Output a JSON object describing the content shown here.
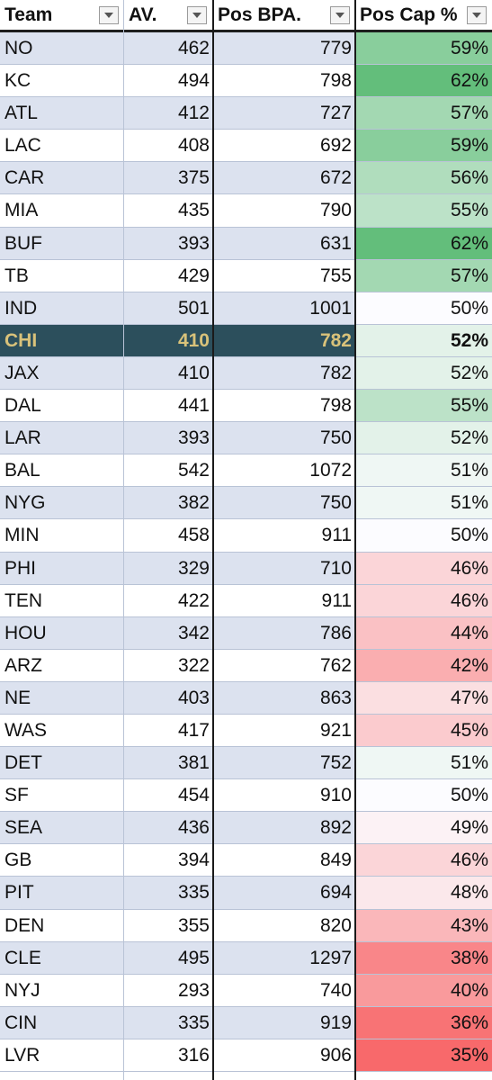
{
  "header": {
    "team": "Team",
    "av": "AV.",
    "bpa": "Pos BPA.",
    "cap": "Pos Cap %"
  },
  "selected_team": "CHI",
  "colors": {
    "band": "#dce2ef",
    "selected": "#2c4f5c",
    "selected_text": "#d9c27a",
    "green": "#63be7b",
    "white": "#fcfcff",
    "red": "#f8696b"
  },
  "rows": [
    {
      "team": "NO",
      "av": "462",
      "bpa": "779",
      "cap": "59%"
    },
    {
      "team": "KC",
      "av": "494",
      "bpa": "798",
      "cap": "62%"
    },
    {
      "team": "ATL",
      "av": "412",
      "bpa": "727",
      "cap": "57%"
    },
    {
      "team": "LAC",
      "av": "408",
      "bpa": "692",
      "cap": "59%"
    },
    {
      "team": "CAR",
      "av": "375",
      "bpa": "672",
      "cap": "56%"
    },
    {
      "team": "MIA",
      "av": "435",
      "bpa": "790",
      "cap": "55%"
    },
    {
      "team": "BUF",
      "av": "393",
      "bpa": "631",
      "cap": "62%"
    },
    {
      "team": "TB",
      "av": "429",
      "bpa": "755",
      "cap": "57%"
    },
    {
      "team": "IND",
      "av": "501",
      "bpa": "1001",
      "cap": "50%"
    },
    {
      "team": "CHI",
      "av": "410",
      "bpa": "782",
      "cap": "52%"
    },
    {
      "team": "JAX",
      "av": "410",
      "bpa": "782",
      "cap": "52%"
    },
    {
      "team": "DAL",
      "av": "441",
      "bpa": "798",
      "cap": "55%"
    },
    {
      "team": "LAR",
      "av": "393",
      "bpa": "750",
      "cap": "52%"
    },
    {
      "team": "BAL",
      "av": "542",
      "bpa": "1072",
      "cap": "51%"
    },
    {
      "team": "NYG",
      "av": "382",
      "bpa": "750",
      "cap": "51%"
    },
    {
      "team": "MIN",
      "av": "458",
      "bpa": "911",
      "cap": "50%"
    },
    {
      "team": "PHI",
      "av": "329",
      "bpa": "710",
      "cap": "46%"
    },
    {
      "team": "TEN",
      "av": "422",
      "bpa": "911",
      "cap": "46%"
    },
    {
      "team": "HOU",
      "av": "342",
      "bpa": "786",
      "cap": "44%"
    },
    {
      "team": "ARZ",
      "av": "322",
      "bpa": "762",
      "cap": "42%"
    },
    {
      "team": "NE",
      "av": "403",
      "bpa": "863",
      "cap": "47%"
    },
    {
      "team": "WAS",
      "av": "417",
      "bpa": "921",
      "cap": "45%"
    },
    {
      "team": "DET",
      "av": "381",
      "bpa": "752",
      "cap": "51%"
    },
    {
      "team": "SF",
      "av": "454",
      "bpa": "910",
      "cap": "50%"
    },
    {
      "team": "SEA",
      "av": "436",
      "bpa": "892",
      "cap": "49%"
    },
    {
      "team": "GB",
      "av": "394",
      "bpa": "849",
      "cap": "46%"
    },
    {
      "team": "PIT",
      "av": "335",
      "bpa": "694",
      "cap": "48%"
    },
    {
      "team": "DEN",
      "av": "355",
      "bpa": "820",
      "cap": "43%"
    },
    {
      "team": "CLE",
      "av": "495",
      "bpa": "1297",
      "cap": "38%"
    },
    {
      "team": "NYJ",
      "av": "293",
      "bpa": "740",
      "cap": "40%"
    },
    {
      "team": "CIN",
      "av": "335",
      "bpa": "919",
      "cap": "36%"
    },
    {
      "team": "LVR",
      "av": "316",
      "bpa": "906",
      "cap": "35%"
    }
  ]
}
